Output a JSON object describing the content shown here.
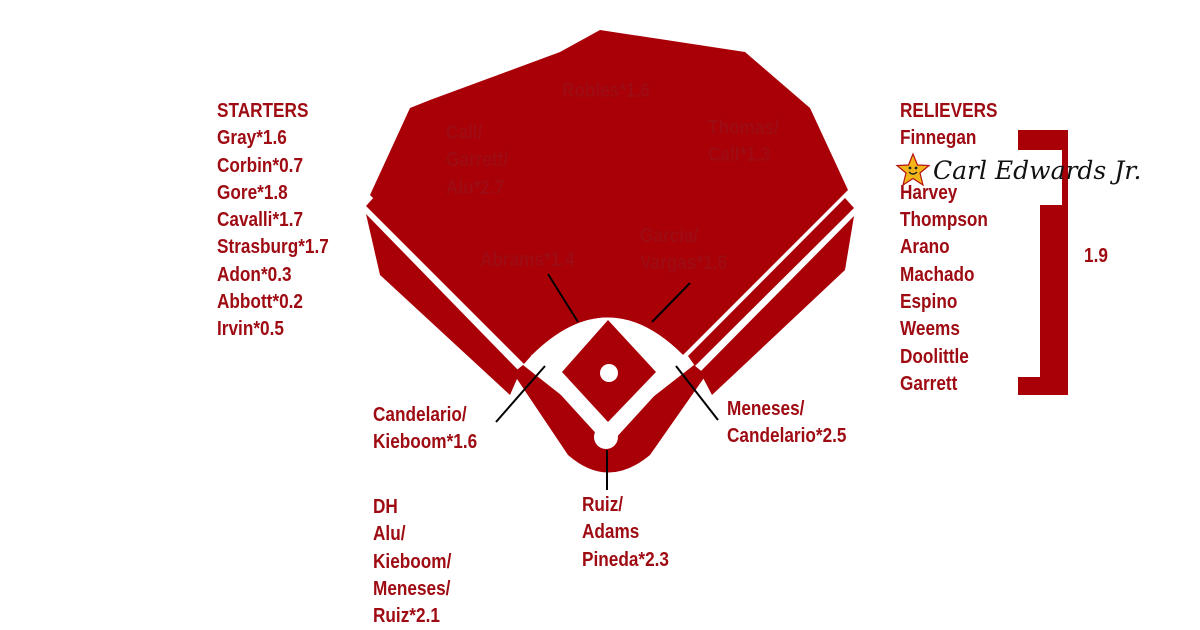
{
  "starters": {
    "heading": "STARTERS",
    "items": [
      "Gray*1.6",
      "Corbin*0.7",
      "Gore*1.8",
      "Cavalli*1.7",
      "Strasburg*1.7",
      "Adon*0.3",
      "Abbott*0.2",
      "Irvin*0.5"
    ]
  },
  "relievers": {
    "heading": "RELIEVERS",
    "items_before": [
      "Finnegan"
    ],
    "sponsor_text": "Carl Edwards Jr.",
    "items_after": [
      "Harvey",
      "Thompson",
      "Arano",
      "Machado",
      "Espino",
      "Weems",
      "Doolittle",
      "Garrett"
    ],
    "group_value": "1.9"
  },
  "positions": {
    "cf": [
      "Robles*1.6"
    ],
    "lf": [
      "Call/",
      "Garrett/",
      "Alu*2.7"
    ],
    "rf": [
      "Thomas/",
      "Call*1.3"
    ],
    "ss": [
      "Abrams*1.4"
    ],
    "second_base": [
      "García/",
      "Vargas*1.6"
    ],
    "third_base": [
      "Candelario/",
      "Kieboom*1.6"
    ],
    "first_base": [
      "Meneses/",
      "Candelario*2.5"
    ],
    "catcher": [
      "Ruiz/",
      "Adams",
      "Pineda*2.3"
    ],
    "dh": [
      "DH",
      "Alu/",
      "Kieboom/",
      "Meneses/",
      "Ruiz*2.1"
    ]
  },
  "colors": {
    "text": "#9e0b12",
    "field": "#a90008",
    "background": "#ffffff",
    "sponsor_star": "#f2b51a"
  },
  "icons": {
    "sponsor_logo": "star-icon"
  }
}
